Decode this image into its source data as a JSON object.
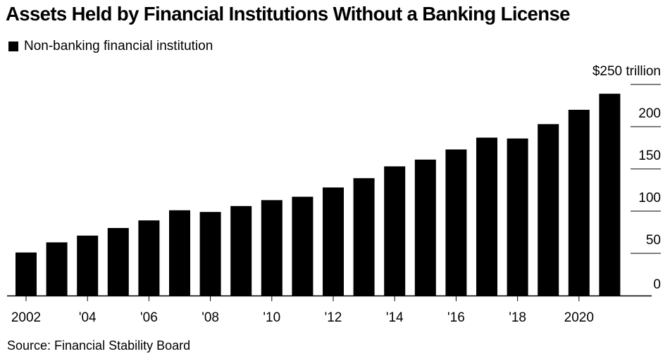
{
  "title": "Assets Held by Financial Institutions Without a Banking License",
  "source": "Source: Financial Stability Board",
  "chart_data": {
    "type": "bar",
    "legend": {
      "position": "top-left",
      "entries": [
        "Non-banking financial institution"
      ]
    },
    "series": [
      {
        "name": "Non-banking financial institution",
        "color": "#000000",
        "values": [
          51,
          63,
          71,
          80,
          89,
          101,
          99,
          106,
          113,
          117,
          128,
          139,
          153,
          161,
          173,
          187,
          186,
          203,
          220,
          239
        ]
      }
    ],
    "categories": [
      "2002",
      "2003",
      "2004",
      "2005",
      "2006",
      "2007",
      "2008",
      "2009",
      "2010",
      "2011",
      "2012",
      "2013",
      "2014",
      "2015",
      "2016",
      "2017",
      "2018",
      "2019",
      "2020",
      "2021"
    ],
    "x_tick_labels": [
      {
        "index": 0,
        "label": "2002"
      },
      {
        "index": 2,
        "label": "'04"
      },
      {
        "index": 4,
        "label": "'06"
      },
      {
        "index": 6,
        "label": "'08"
      },
      {
        "index": 8,
        "label": "'10"
      },
      {
        "index": 10,
        "label": "'12"
      },
      {
        "index": 12,
        "label": "'14"
      },
      {
        "index": 14,
        "label": "'16"
      },
      {
        "index": 16,
        "label": "'18"
      },
      {
        "index": 18,
        "label": "2020"
      }
    ],
    "y_ticks": [
      {
        "value": 0,
        "label": "0"
      },
      {
        "value": 50,
        "label": "50"
      },
      {
        "value": 100,
        "label": "100"
      },
      {
        "value": 150,
        "label": "150"
      },
      {
        "value": 200,
        "label": "200"
      },
      {
        "value": 250,
        "label": "$250 trillion"
      }
    ],
    "ylim": [
      0,
      250
    ],
    "y_axis_side": "right",
    "grid": false
  }
}
